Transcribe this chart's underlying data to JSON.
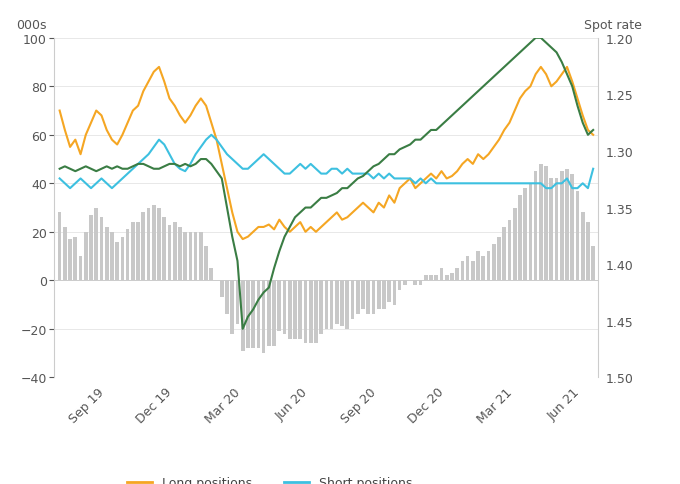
{
  "ylabel_left": "000s",
  "ylabel_right": "Spot rate",
  "ylim_left": [
    -40,
    100
  ],
  "yticks_left": [
    -40,
    -20,
    0,
    20,
    40,
    60,
    80,
    100
  ],
  "yticks_right": [
    1.2,
    1.25,
    1.3,
    1.35,
    1.4,
    1.45,
    1.5
  ],
  "xtick_labels": [
    "Sep 19",
    "Dec 19",
    "Mar 20",
    "Jun 20",
    "Sep 20",
    "Dec 20",
    "Mar 21",
    "Jun 21"
  ],
  "colors": {
    "long": "#F5A623",
    "short": "#3DC0E0",
    "net_bar": "#C8C8C8",
    "usdcad": "#3A7D44",
    "background": "#FFFFFF"
  },
  "tick_positions": [
    9,
    22,
    35,
    48,
    61,
    74,
    87,
    100
  ],
  "long": [
    70,
    62,
    55,
    58,
    52,
    60,
    65,
    70,
    68,
    62,
    58,
    56,
    60,
    65,
    70,
    72,
    78,
    82,
    86,
    88,
    82,
    75,
    72,
    68,
    65,
    68,
    72,
    75,
    72,
    65,
    58,
    48,
    38,
    28,
    20,
    17,
    18,
    20,
    22,
    22,
    23,
    21,
    25,
    22,
    20,
    22,
    24,
    20,
    22,
    20,
    22,
    24,
    26,
    28,
    25,
    26,
    28,
    30,
    32,
    30,
    28,
    32,
    30,
    35,
    32,
    38,
    40,
    42,
    38,
    40,
    42,
    44,
    42,
    45,
    42,
    43,
    45,
    48,
    50,
    48,
    52,
    50,
    52,
    55,
    58,
    62,
    65,
    70,
    75,
    78,
    80,
    85,
    88,
    85,
    80,
    82,
    85,
    88,
    82,
    75,
    68,
    62,
    60
  ],
  "short": [
    42,
    40,
    38,
    40,
    42,
    40,
    38,
    40,
    42,
    40,
    38,
    40,
    42,
    44,
    46,
    48,
    50,
    52,
    55,
    58,
    56,
    52,
    48,
    46,
    45,
    48,
    52,
    55,
    58,
    60,
    58,
    55,
    52,
    50,
    48,
    46,
    46,
    48,
    50,
    52,
    50,
    48,
    46,
    44,
    44,
    46,
    48,
    46,
    48,
    46,
    44,
    44,
    46,
    46,
    44,
    46,
    44,
    44,
    44,
    44,
    42,
    44,
    42,
    44,
    42,
    42,
    42,
    42,
    40,
    42,
    40,
    42,
    40,
    40,
    40,
    40,
    40,
    40,
    40,
    40,
    40,
    40,
    40,
    40,
    40,
    40,
    40,
    40,
    40,
    40,
    40,
    40,
    40,
    38,
    38,
    40,
    40,
    42,
    38,
    38,
    40,
    38,
    46
  ],
  "net": [
    28,
    22,
    17,
    18,
    10,
    20,
    27,
    30,
    26,
    22,
    20,
    16,
    18,
    21,
    24,
    24,
    28,
    30,
    31,
    30,
    26,
    23,
    24,
    22,
    20,
    20,
    20,
    20,
    14,
    5,
    0,
    -7,
    -14,
    -22,
    -18,
    -29,
    -28,
    -28,
    -28,
    -30,
    -27,
    -27,
    -21,
    -22,
    -24,
    -24,
    -24,
    -26,
    -26,
    -26,
    -22,
    -20,
    -20,
    -18,
    -19,
    -20,
    -16,
    -14,
    -12,
    -14,
    -14,
    -12,
    -12,
    -9,
    -10,
    -4,
    -2,
    0,
    -2,
    -2,
    2,
    2,
    2,
    5,
    2,
    3,
    5,
    8,
    10,
    8,
    12,
    10,
    12,
    15,
    18,
    22,
    25,
    30,
    35,
    38,
    40,
    45,
    48,
    47,
    42,
    42,
    45,
    46,
    44,
    37,
    28,
    24,
    14
  ],
  "usdcad": [
    46,
    47,
    46,
    45,
    46,
    47,
    46,
    45,
    46,
    47,
    46,
    47,
    46,
    46,
    47,
    48,
    48,
    47,
    46,
    46,
    47,
    48,
    48,
    47,
    48,
    47,
    48,
    50,
    50,
    48,
    45,
    42,
    30,
    18,
    8,
    -20,
    -15,
    -12,
    -8,
    -5,
    -3,
    5,
    12,
    18,
    22,
    26,
    28,
    30,
    30,
    32,
    34,
    34,
    35,
    36,
    38,
    38,
    40,
    42,
    43,
    45,
    47,
    48,
    50,
    52,
    52,
    54,
    55,
    56,
    58,
    58,
    60,
    62,
    62,
    64,
    66,
    68,
    70,
    72,
    74,
    76,
    78,
    80,
    82,
    84,
    86,
    88,
    90,
    92,
    94,
    96,
    98,
    100,
    100,
    98,
    96,
    94,
    90,
    85,
    80,
    72,
    65,
    60,
    62
  ]
}
